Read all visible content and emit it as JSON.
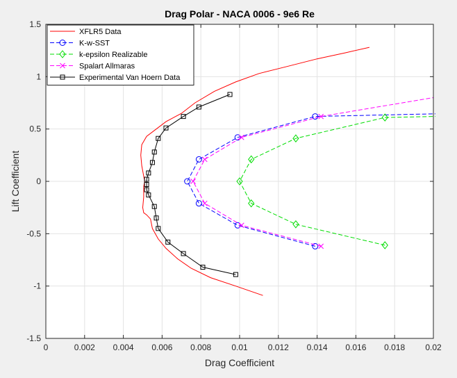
{
  "chart_data": {
    "type": "line",
    "title": "Drag Polar - NACA 0006 - 9e6 Re",
    "xlabel": "Drag Coefficient",
    "ylabel": "Lift Coefficient",
    "xlim": [
      0,
      0.02
    ],
    "ylim": [
      -1.5,
      1.5
    ],
    "xticks": [
      0,
      0.002,
      0.004,
      0.006,
      0.008,
      0.01,
      0.012,
      0.014,
      0.016,
      0.018,
      0.02
    ],
    "xtick_labels": [
      "0",
      "0.002",
      "0.004",
      "0.006",
      "0.008",
      "0.01",
      "0.012",
      "0.014",
      "0.016",
      "0.018",
      "0.02"
    ],
    "yticks": [
      -1.5,
      -1,
      -0.5,
      0,
      0.5,
      1,
      1.5
    ],
    "ytick_labels": [
      "-1.5",
      "-1",
      "-0.5",
      "0",
      "0.5",
      "1",
      "1.5"
    ],
    "grid": true,
    "legend_position": "top-left",
    "series": [
      {
        "name": "XFLR5 Data",
        "color": "#ff0000",
        "line": "solid",
        "marker": "none",
        "points": [
          [
            0.0112,
            -1.09
          ],
          [
            0.0098,
            -1.0
          ],
          [
            0.0085,
            -0.92
          ],
          [
            0.0075,
            -0.83
          ],
          [
            0.0068,
            -0.74
          ],
          [
            0.0062,
            -0.64
          ],
          [
            0.0058,
            -0.55
          ],
          [
            0.0055,
            -0.45
          ],
          [
            0.0054,
            -0.36
          ],
          [
            0.0052,
            -0.32
          ],
          [
            0.00505,
            -0.3
          ],
          [
            0.005,
            -0.25
          ],
          [
            0.00505,
            -0.15
          ],
          [
            0.00505,
            -0.05
          ],
          [
            0.0051,
            0.0
          ],
          [
            0.00505,
            0.05
          ],
          [
            0.00495,
            0.15
          ],
          [
            0.0049,
            0.25
          ],
          [
            0.00495,
            0.35
          ],
          [
            0.0052,
            0.43
          ],
          [
            0.0057,
            0.5
          ],
          [
            0.0062,
            0.57
          ],
          [
            0.007,
            0.65
          ],
          [
            0.0077,
            0.75
          ],
          [
            0.0087,
            0.86
          ],
          [
            0.0098,
            0.95
          ],
          [
            0.011,
            1.03
          ],
          [
            0.0125,
            1.1
          ],
          [
            0.014,
            1.17
          ],
          [
            0.0155,
            1.23
          ],
          [
            0.0167,
            1.28
          ]
        ]
      },
      {
        "name": "K-w-SST",
        "color": "#0000ff",
        "line": "dashed",
        "marker": "circle",
        "points": [
          [
            0.0139,
            -0.62
          ],
          [
            0.0099,
            -0.42
          ],
          [
            0.0079,
            -0.21
          ],
          [
            0.0073,
            0.0
          ],
          [
            0.0079,
            0.21
          ],
          [
            0.0099,
            0.42
          ],
          [
            0.0139,
            0.62
          ],
          [
            0.0201,
            0.645
          ]
        ],
        "marker_count": 7
      },
      {
        "name": "k-epsilon Realizable",
        "color": "#00dd00",
        "line": "dashed",
        "marker": "diamond",
        "points": [
          [
            0.0175,
            -0.61
          ],
          [
            0.0129,
            -0.41
          ],
          [
            0.0106,
            -0.21
          ],
          [
            0.01,
            0.0
          ],
          [
            0.0106,
            0.21
          ],
          [
            0.0129,
            0.41
          ],
          [
            0.0175,
            0.61
          ],
          [
            0.0201,
            0.62
          ]
        ],
        "marker_count": 7
      },
      {
        "name": "Spalart Allmaras",
        "color": "#ff00ff",
        "line": "dashed",
        "marker": "x",
        "points": [
          [
            0.0142,
            -0.62
          ],
          [
            0.0101,
            -0.42
          ],
          [
            0.0082,
            -0.21
          ],
          [
            0.0076,
            0.0
          ],
          [
            0.0082,
            0.21
          ],
          [
            0.0101,
            0.42
          ],
          [
            0.0142,
            0.62
          ],
          [
            0.02,
            0.8
          ]
        ],
        "marker_count": 7
      },
      {
        "name": "Experimental Van Hoern Data",
        "color": "#000000",
        "line": "solid",
        "marker": "square",
        "points": [
          [
            0.0098,
            -0.89
          ],
          [
            0.0081,
            -0.82
          ],
          [
            0.0071,
            -0.69
          ],
          [
            0.0063,
            -0.58
          ],
          [
            0.0058,
            -0.45
          ],
          [
            0.0057,
            -0.35
          ],
          [
            0.0056,
            -0.24
          ],
          [
            0.0053,
            -0.13
          ],
          [
            0.0052,
            -0.08
          ],
          [
            0.0052,
            -0.03
          ],
          [
            0.0052,
            0.02
          ],
          [
            0.0053,
            0.08
          ],
          [
            0.0055,
            0.18
          ],
          [
            0.0056,
            0.28
          ],
          [
            0.0058,
            0.41
          ],
          [
            0.0062,
            0.51
          ],
          [
            0.0071,
            0.62
          ],
          [
            0.0079,
            0.71
          ],
          [
            0.0095,
            0.83
          ]
        ],
        "marker_count": 19
      }
    ]
  }
}
